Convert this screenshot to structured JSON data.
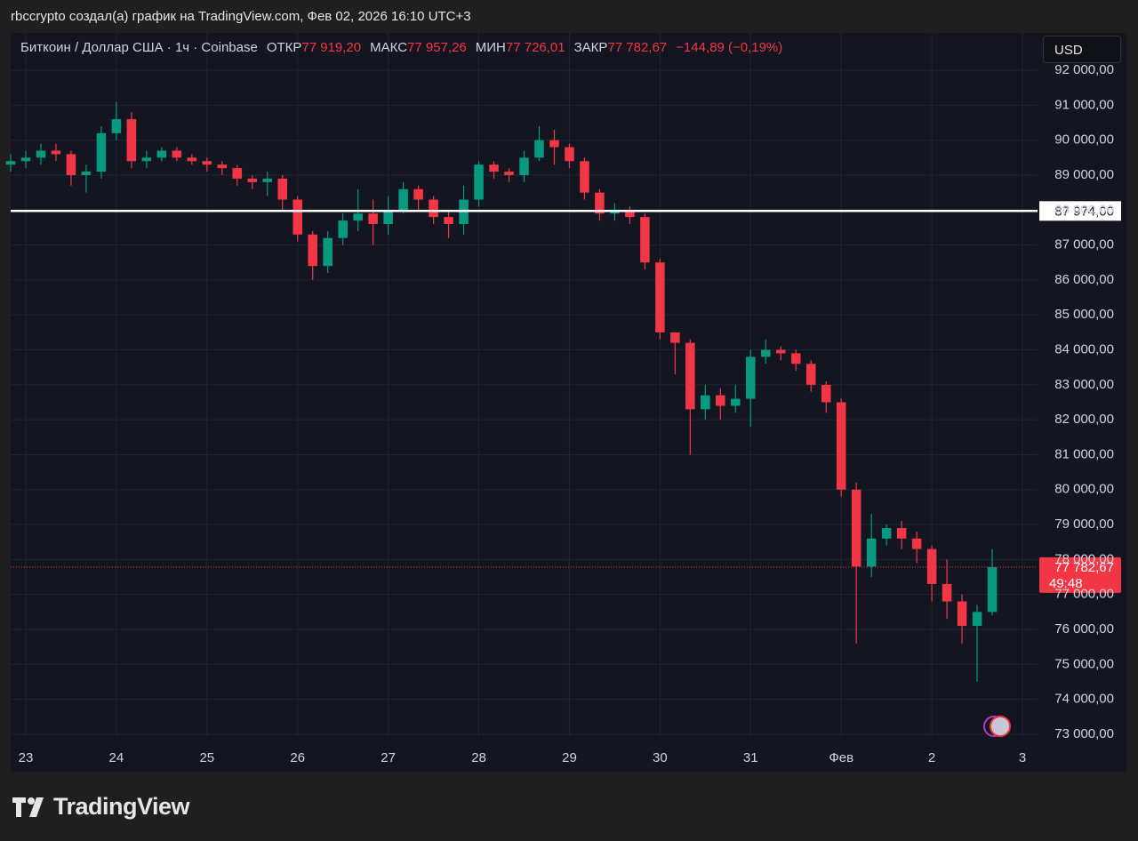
{
  "header": "rbccrypto создал(а) график на TradingView.com, Фев 02, 2026 16:10 UTC+3",
  "footer": "TradingView",
  "chart_data": {
    "type": "candlestick",
    "symbol": "Биткоин / Доллар США · 1ч · Coinbase",
    "legend": [
      {
        "label": "ОТКР",
        "value": "77 919,20"
      },
      {
        "label": "МАКС",
        "value": "77 957,26"
      },
      {
        "label": "МИН",
        "value": "77 726,01"
      },
      {
        "label": "ЗАКР",
        "value": "77 782,67"
      }
    ],
    "change": "−144,89 (−0,19%)",
    "currency": "USD",
    "up_color": "#089981",
    "down_color": "#f23645",
    "grid": true,
    "x": [
      -4,
      0,
      4,
      8,
      12,
      16,
      20,
      24,
      28,
      32,
      36,
      40,
      44,
      48,
      52,
      56,
      60,
      64,
      68,
      72,
      76,
      80,
      84,
      88,
      92,
      96,
      100,
      104,
      108,
      112,
      116,
      120,
      124,
      128,
      132,
      136,
      140,
      144,
      148,
      152,
      156,
      160,
      164,
      168,
      172,
      176,
      180,
      184,
      188,
      192,
      196,
      200,
      204,
      208,
      212,
      216,
      220,
      224,
      228,
      232,
      236,
      240,
      244,
      248,
      252,
      256
    ],
    "open": [
      89300,
      89400,
      89500,
      89700,
      89600,
      89000,
      89100,
      90200,
      90600,
      89400,
      89500,
      89700,
      89500,
      89400,
      89300,
      89200,
      88900,
      88800,
      88900,
      88300,
      87300,
      86400,
      87200,
      87700,
      87900,
      87600,
      88000,
      88600,
      88300,
      87800,
      87600,
      88300,
      89300,
      89100,
      89000,
      89500,
      90000,
      89800,
      89400,
      88500,
      87900,
      88000,
      87800,
      86500,
      84500,
      84200,
      82300,
      82700,
      82400,
      82600,
      83800,
      84000,
      83900,
      83600,
      83000,
      82500,
      80000,
      77800,
      78600,
      78900,
      78600,
      78300,
      77300,
      76800,
      76100,
      76500
    ],
    "high": [
      89600,
      89700,
      89900,
      89900,
      89700,
      89300,
      90400,
      91100,
      90800,
      89700,
      89800,
      89800,
      89600,
      89500,
      89400,
      89300,
      89000,
      89100,
      89000,
      88400,
      87400,
      87400,
      87900,
      88600,
      88300,
      88400,
      88800,
      88700,
      88400,
      88000,
      88700,
      89400,
      89400,
      89200,
      89700,
      90400,
      90300,
      89900,
      89500,
      88600,
      88200,
      88100,
      87900,
      86600,
      84500,
      84300,
      83000,
      82900,
      83000,
      84000,
      84300,
      84100,
      84000,
      83700,
      83100,
      82600,
      80200,
      79300,
      79000,
      79100,
      78800,
      78400,
      78000,
      77000,
      76700,
      78300
    ],
    "low": [
      89100,
      89200,
      89300,
      89400,
      88700,
      88500,
      88900,
      90000,
      89200,
      89200,
      89400,
      89400,
      89300,
      89100,
      89000,
      88700,
      88600,
      88400,
      88000,
      87100,
      86000,
      86200,
      87000,
      87400,
      87000,
      87300,
      87900,
      88000,
      87600,
      87200,
      87300,
      88100,
      88900,
      88800,
      88800,
      89400,
      89300,
      89200,
      88300,
      87700,
      87700,
      87600,
      86300,
      84300,
      83300,
      81000,
      82000,
      82000,
      82200,
      81800,
      83600,
      83700,
      83400,
      82800,
      82200,
      79800,
      75600,
      77500,
      78400,
      78300,
      77900,
      76800,
      76300,
      75600,
      74500,
      76400
    ],
    "close": [
      89400,
      89500,
      89700,
      89600,
      89000,
      89100,
      90200,
      90600,
      89400,
      89500,
      89700,
      89500,
      89400,
      89300,
      89200,
      88900,
      88800,
      88900,
      88300,
      87300,
      86400,
      87200,
      87700,
      87900,
      87600,
      88000,
      88600,
      88300,
      87800,
      87600,
      88300,
      89300,
      89100,
      89000,
      89500,
      90000,
      89800,
      89400,
      88500,
      87900,
      88000,
      87800,
      86500,
      84500,
      84200,
      82300,
      82700,
      82400,
      82600,
      83800,
      84000,
      83900,
      83600,
      83000,
      82500,
      80000,
      77800,
      78600,
      78900,
      78600,
      78300,
      77300,
      76800,
      76100,
      76500,
      77782.67
    ],
    "xlim": [
      -4,
      268
    ],
    "xticks": [
      {
        "value": 0,
        "label": "23"
      },
      {
        "value": 24,
        "label": "24"
      },
      {
        "value": 48,
        "label": "25"
      },
      {
        "value": 72,
        "label": "26"
      },
      {
        "value": 96,
        "label": "27"
      },
      {
        "value": 120,
        "label": "28"
      },
      {
        "value": 144,
        "label": "29"
      },
      {
        "value": 168,
        "label": "30"
      },
      {
        "value": 192,
        "label": "31"
      },
      {
        "value": 216,
        "label": "Фев"
      },
      {
        "value": 240,
        "label": "2"
      },
      {
        "value": 264,
        "label": "3"
      }
    ],
    "ylim": [
      71980,
      93070
    ],
    "yticks": [
      {
        "value": 73000,
        "label": "73 000,00"
      },
      {
        "value": 74000,
        "label": "74 000,00"
      },
      {
        "value": 75000,
        "label": "75 000,00"
      },
      {
        "value": 76000,
        "label": "76 000,00"
      },
      {
        "value": 77000,
        "label": "77 000,00"
      },
      {
        "value": 78000,
        "label": "78 000,00"
      },
      {
        "value": 79000,
        "label": "79 000,00"
      },
      {
        "value": 80000,
        "label": "80 000,00"
      },
      {
        "value": 81000,
        "label": "81 000,00"
      },
      {
        "value": 82000,
        "label": "82 000,00"
      },
      {
        "value": 83000,
        "label": "83 000,00"
      },
      {
        "value": 84000,
        "label": "84 000,00"
      },
      {
        "value": 85000,
        "label": "85 000,00"
      },
      {
        "value": 86000,
        "label": "86 000,00"
      },
      {
        "value": 87000,
        "label": "87 000,00"
      },
      {
        "value": 88000,
        "label": "88 000,00"
      },
      {
        "value": 89000,
        "label": "89 000,00"
      },
      {
        "value": 90000,
        "label": "90 000,00"
      },
      {
        "value": 91000,
        "label": "91 000,00"
      },
      {
        "value": 92000,
        "label": "92 000,00"
      }
    ],
    "hline": {
      "value": 87974,
      "label": "87 974,00",
      "color": "#ffffff"
    },
    "last": {
      "value": 77782.67,
      "label": "77 782,67",
      "countdown": "49:48",
      "color": "#f23645"
    }
  }
}
